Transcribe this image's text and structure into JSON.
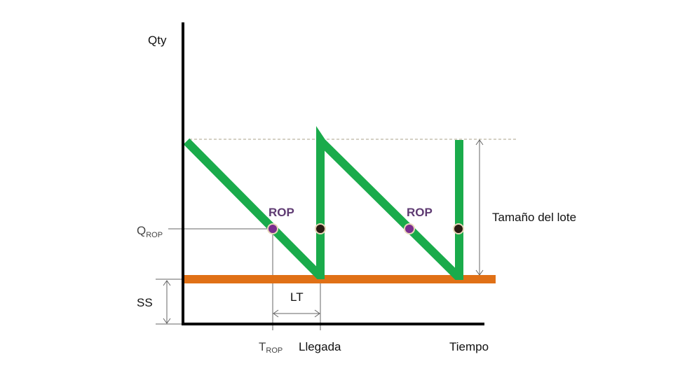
{
  "labels": {
    "y_axis": "Qty",
    "q_rop_main": "Q",
    "q_rop_sub": "ROP",
    "ss": "SS",
    "t_rop_main": "T",
    "t_rop_sub": "ROP",
    "arrival": "Llegada",
    "time": "Tiempo",
    "lt": "LT",
    "lot_size": "Tamaño del lote",
    "rop_1": "ROP",
    "rop_2": "ROP"
  },
  "colors": {
    "inventory_line": "#1aab4b",
    "safety_stock": "#e07016",
    "rop_point": "#7a2e8e",
    "arrival_point": "#2a1a12",
    "point_ring": "#e8d6b8",
    "rop_text": "#5e3a72"
  }
}
